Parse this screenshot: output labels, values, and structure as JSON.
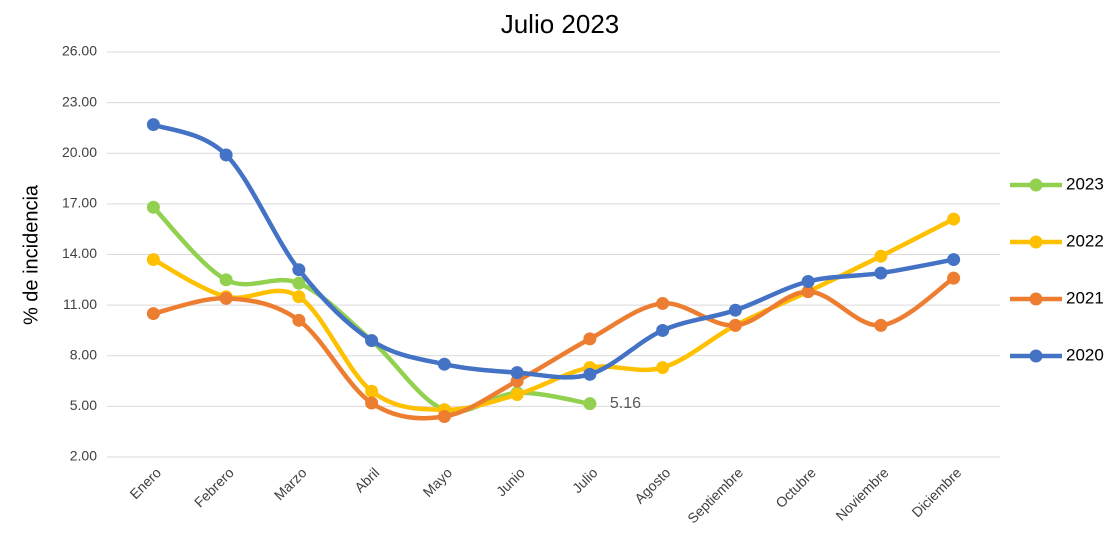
{
  "chart_data": {
    "type": "line",
    "title": "Julio 2023",
    "y_label": "% de incidencia",
    "categories": [
      "Enero",
      "Febrero",
      "Marzo",
      "Abril",
      "Mayo",
      "Junio",
      "Julio",
      "Agosto",
      "Septiembre",
      "Octubre",
      "Noviembre",
      "Diciembre"
    ],
    "series": [
      {
        "name": "2023",
        "color": "#92d050",
        "values": [
          16.8,
          12.5,
          12.3,
          8.9,
          4.8,
          5.8,
          5.16,
          null,
          null,
          null,
          null,
          null
        ],
        "value_labels": [
          null,
          null,
          null,
          null,
          null,
          null,
          "5.16",
          null,
          null,
          null,
          null,
          null
        ]
      },
      {
        "name": "2022",
        "color": "#ffc000",
        "values": [
          13.7,
          11.5,
          11.5,
          5.9,
          4.8,
          5.7,
          7.3,
          7.3,
          9.8,
          11.8,
          13.9,
          16.1
        ]
      },
      {
        "name": "2021",
        "color": "#ed7d31",
        "values": [
          10.5,
          11.4,
          10.1,
          5.2,
          4.4,
          6.5,
          9.0,
          11.1,
          9.8,
          11.8,
          9.8,
          12.6
        ]
      },
      {
        "name": "2020",
        "color": "#4472c4",
        "values": [
          21.7,
          19.9,
          13.1,
          8.9,
          7.5,
          7.0,
          6.9,
          9.5,
          10.7,
          12.4,
          12.9,
          13.7
        ]
      }
    ],
    "ylim": [
      2,
      26
    ],
    "yticks": [
      {
        "value": 2,
        "label": "2.00"
      },
      {
        "value": 5,
        "label": "5.00"
      },
      {
        "value": 8,
        "label": "8.00"
      },
      {
        "value": 11,
        "label": "11.00"
      },
      {
        "value": 14,
        "label": "14.00"
      },
      {
        "value": 17,
        "label": "17.00"
      },
      {
        "value": 20,
        "label": "20.00"
      },
      {
        "value": 23,
        "label": "23.00"
      },
      {
        "value": 26,
        "label": "26.00"
      }
    ],
    "grid": true,
    "legend": "right",
    "smooth": true
  }
}
